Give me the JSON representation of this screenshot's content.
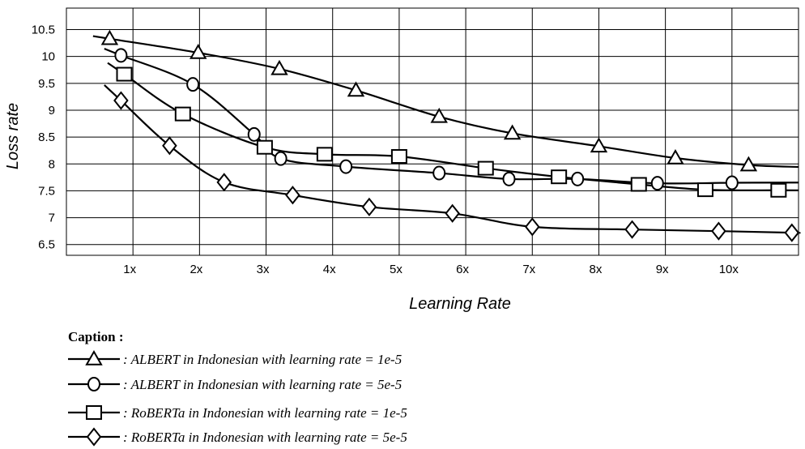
{
  "chart_data": {
    "type": "line",
    "title": "",
    "xlabel": "Learning Rate",
    "ylabel": "Loss rate",
    "x_categories": [
      "1x",
      "2x",
      "3x",
      "4x",
      "5x",
      "6x",
      "7x",
      "8x",
      "9x",
      "10x"
    ],
    "yticks": [
      "10.5",
      "10",
      "9.5",
      "9",
      "8.5",
      "8",
      "7.5",
      "7",
      "6.5"
    ],
    "ylim": [
      6.3,
      10.9
    ],
    "xlim": [
      0,
      11
    ],
    "grid": true,
    "legend_title": "Caption :",
    "series": [
      {
        "name": ": ALBERT in Indonesian with learning rate = 1e-5",
        "marker": "triangle",
        "x": [
          0.65,
          1.98,
          3.2,
          4.35,
          5.6,
          6.7,
          8.0,
          9.15,
          10.25
        ],
        "y": [
          10.33,
          10.07,
          9.77,
          9.37,
          8.88,
          8.57,
          8.33,
          8.11,
          7.98
        ]
      },
      {
        "name": ": ALBERT in Indonesian with learning rate = 5e-5",
        "marker": "circle",
        "x": [
          0.82,
          1.9,
          2.82,
          3.22,
          4.2,
          5.6,
          6.65,
          7.68,
          8.88,
          10.0
        ],
        "y": [
          10.02,
          9.48,
          8.55,
          8.1,
          7.95,
          7.83,
          7.72,
          7.72,
          7.64,
          7.65
        ]
      },
      {
        "name": ": RoBERTa in Indonesian with learning rate = 1e-5",
        "marker": "square",
        "x": [
          0.87,
          1.75,
          2.98,
          3.88,
          5.0,
          6.3,
          7.4,
          8.6,
          9.6,
          10.7
        ],
        "y": [
          9.67,
          8.93,
          8.31,
          8.18,
          8.14,
          7.92,
          7.76,
          7.62,
          7.52,
          7.51
        ]
      },
      {
        "name": ": RoBERTa in Indonesian with learning rate = 5e-5",
        "marker": "diamond",
        "x": [
          0.82,
          1.55,
          2.37,
          3.4,
          4.55,
          5.8,
          7.0,
          8.5,
          9.8,
          10.9
        ],
        "y": [
          9.18,
          8.34,
          7.66,
          7.42,
          7.2,
          7.08,
          6.83,
          6.78,
          6.75,
          6.72
        ]
      }
    ]
  }
}
